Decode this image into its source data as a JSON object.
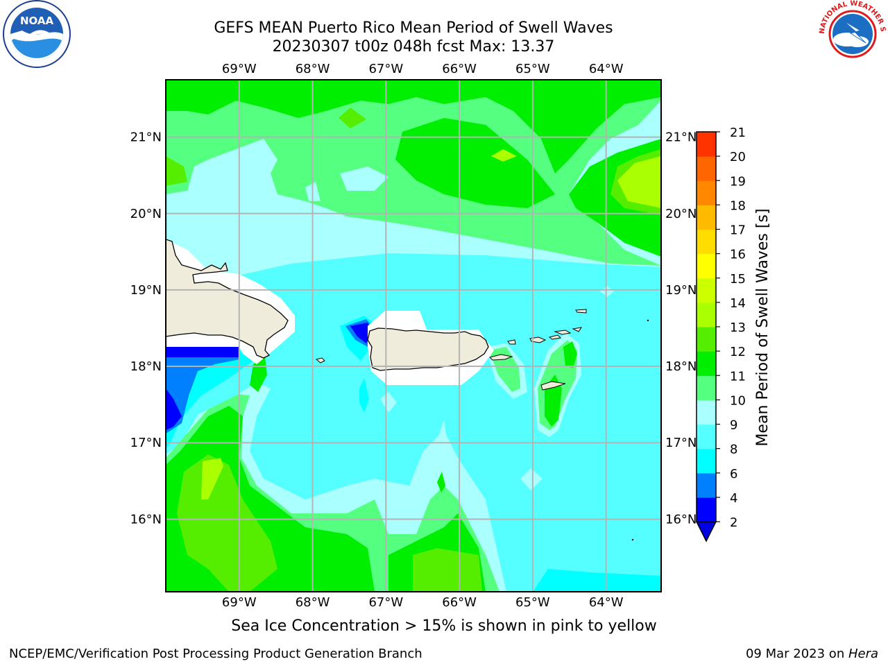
{
  "title": {
    "line1": "GEFS MEAN Puerto Rico Mean Period of Swell Waves",
    "line2": "20230307 t00z 048h fcst   Max: 13.37"
  },
  "map": {
    "lon_labels": [
      "69°W",
      "68°W",
      "67°W",
      "66°W",
      "65°W",
      "64°W"
    ],
    "lat_labels": [
      "21°N",
      "20°N",
      "19°N",
      "18°N",
      "17°N",
      "16°N"
    ],
    "lon_range": [
      -70,
      -63.25
    ],
    "lat_range": [
      15.05,
      21.75
    ],
    "land_color": "#efecdc",
    "grid_color": "#b4b4b4"
  },
  "colorbar": {
    "label": "Mean Period of Swell Waves [s]",
    "levels": [
      "2",
      "4",
      "6",
      "8",
      "9",
      "10",
      "11",
      "12",
      "13",
      "14",
      "15",
      "16",
      "17",
      "18",
      "19",
      "20",
      "21"
    ],
    "colors": [
      "#0000ff",
      "#007fff",
      "#00ffff",
      "#55ffff",
      "#aaffff",
      "#55ff7f",
      "#00ee00",
      "#55ee00",
      "#aaff00",
      "#ccff00",
      "#ffff00",
      "#ffdd00",
      "#ffbb00",
      "#ff8800",
      "#ff6600",
      "#ff3300",
      "#ff0000"
    ],
    "extend_color": "#0000e0"
  },
  "caption": "Sea Ice Concentration > 15% is shown in pink to yellow",
  "footer": {
    "left": "NCEP/EMC/Verification Post Processing Product Generation Branch",
    "right_date": "09 Mar 2023 on ",
    "right_machine": "Hera"
  },
  "logos": {
    "noaa_text": "NOAA",
    "nws_text": "NATIONAL WEATHER SERVICE"
  }
}
